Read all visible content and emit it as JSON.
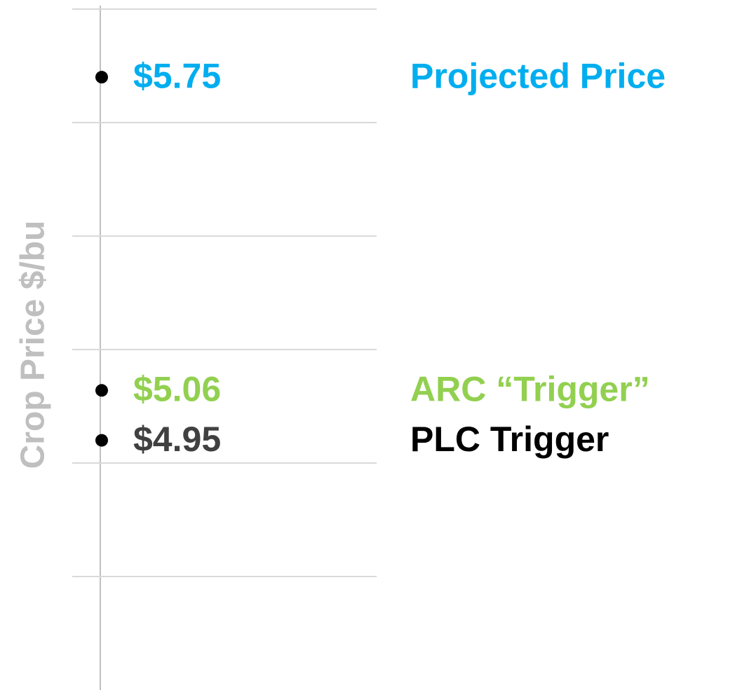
{
  "chart_data": {
    "type": "dot",
    "y_label": "Crop Price $/bu",
    "ylim": [
      4.4,
      5.92
    ],
    "yticks": [
      4.65,
      4.9,
      5.15,
      5.4,
      5.65,
      5.9
    ],
    "grid": true,
    "marker_color": "#000000",
    "series": [
      {
        "name": "Projected Price",
        "color": "#00aeef",
        "name_color": "#00aeef",
        "values": [
          5.75
        ],
        "value_labels": [
          "$5.75"
        ]
      },
      {
        "name": "ARC “Trigger”",
        "color": "#92d050",
        "name_color": "#92d050",
        "values": [
          5.06
        ],
        "value_labels": [
          "$5.06"
        ]
      },
      {
        "name": "PLC Trigger",
        "color": "#404040",
        "name_color": "#000000",
        "values": [
          4.95
        ],
        "value_labels": [
          "$4.95"
        ]
      }
    ]
  }
}
